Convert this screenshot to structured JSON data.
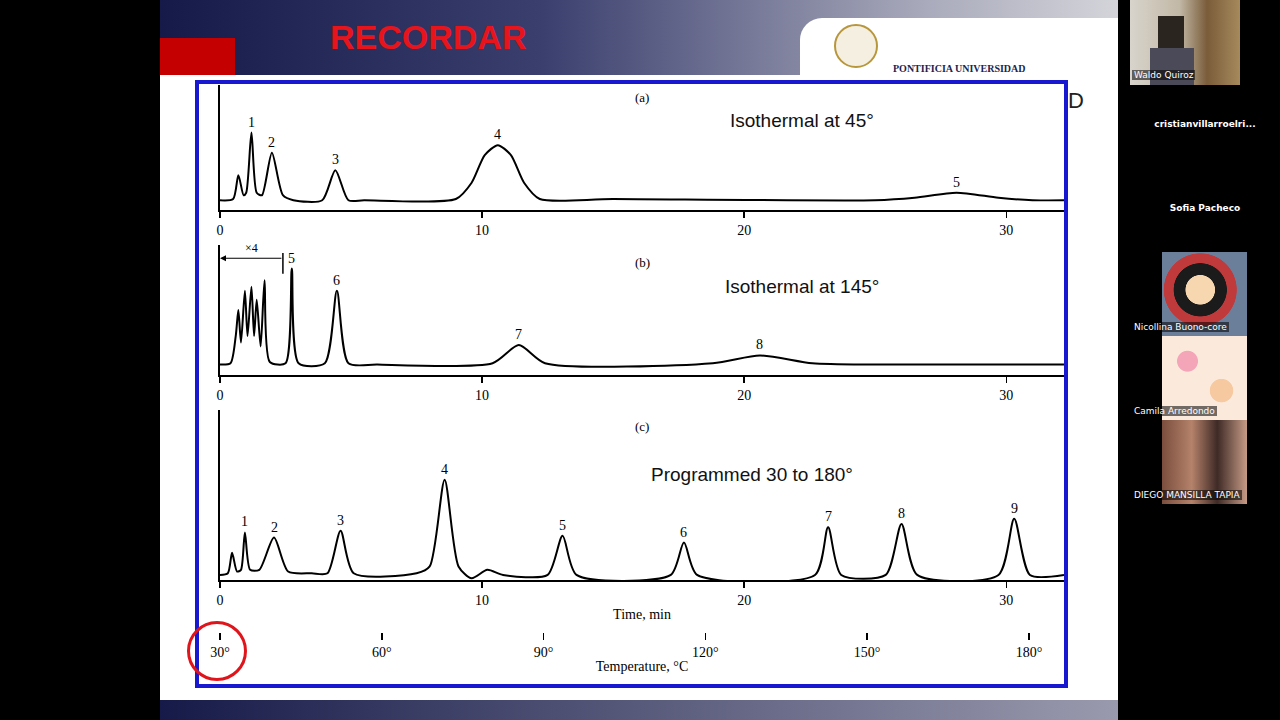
{
  "slide": {
    "heading": "RECORDAR",
    "institution": "PONTIFICIA UNIVERSIDAD",
    "title_fragment": "D"
  },
  "participants": [
    "Waldo Quiroz",
    "cristianvillarroelri...",
    "Sofia Pacheco",
    "Nicollina Buono-core",
    "Camila Arredondo",
    "DIEGO MANSILLA TAPIA"
  ],
  "chart_data": [
    {
      "type": "line",
      "label": "(a)",
      "title": "Isothermal at 45°",
      "color": "#000000",
      "line_style": "smooth",
      "grid": false,
      "tick_labels": "x",
      "x": [
        0,
        0.5,
        0.7,
        0.9,
        1.0,
        1.2,
        1.4,
        1.6,
        1.98,
        2.4,
        2.8,
        3.9,
        4.4,
        4.9,
        5.5,
        9.0,
        9.6,
        10.1,
        10.6,
        11.1,
        11.6,
        12.2,
        15,
        25,
        26.5,
        28.1,
        29.7,
        31,
        32.2
      ],
      "values": [
        8,
        9,
        28,
        12,
        14,
        62,
        14,
        12,
        46,
        12,
        8,
        8,
        32,
        8,
        8,
        9,
        22,
        44,
        52,
        44,
        22,
        9,
        9,
        8,
        10,
        14,
        10,
        8,
        8
      ],
      "xlim": [
        0,
        32.2
      ],
      "xticks": [
        0,
        10,
        20,
        30
      ],
      "ylim": [
        0,
        100
      ],
      "peak_labels": [
        {
          "text": "1",
          "x": 1.2
        },
        {
          "text": "2",
          "x": 1.98
        },
        {
          "text": "3",
          "x": 4.4
        },
        {
          "text": "4",
          "x": 10.6
        },
        {
          "text": "5",
          "x": 28.1
        }
      ]
    },
    {
      "type": "line",
      "label": "(b)",
      "title": "Isothermal at 145°",
      "color": "#000000",
      "line_style": "smooth",
      "grid": false,
      "tick_labels": "x",
      "x": [
        0,
        0.4,
        0.6,
        0.7,
        0.8,
        0.95,
        1.05,
        1.2,
        1.3,
        1.4,
        1.55,
        1.7,
        1.9,
        2.5,
        2.74,
        3.0,
        4.0,
        4.46,
        4.9,
        6,
        10.4,
        11.4,
        12.4,
        18.8,
        20.6,
        22.6,
        25,
        32.2
      ],
      "values": [
        8,
        9,
        30,
        50,
        25,
        65,
        30,
        68,
        30,
        58,
        22,
        73,
        10,
        9,
        82,
        9,
        9,
        65,
        9,
        8,
        9,
        23,
        9,
        9,
        15,
        9,
        8,
        8
      ],
      "xlim": [
        0,
        32.2
      ],
      "xticks": [
        0,
        10,
        20,
        30
      ],
      "ylim": [
        0,
        100
      ],
      "peak_labels": [
        {
          "text": "5",
          "x": 2.74
        },
        {
          "text": "6",
          "x": 4.46
        },
        {
          "text": "7",
          "x": 11.4
        },
        {
          "text": "8",
          "x": 20.6
        }
      ],
      "annotations": [
        {
          "text": "×4",
          "x": [
            0,
            2.4
          ],
          "y": 90
        }
      ]
    },
    {
      "type": "line",
      "label": "(c)",
      "title": "Programmed 30 to 180°",
      "color": "#000000",
      "line_style": "smooth",
      "grid": false,
      "tick_labels": "x",
      "x": [
        0,
        0.3,
        0.46,
        0.65,
        0.8,
        0.95,
        1.15,
        1.5,
        2.06,
        2.6,
        3.5,
        4.1,
        4.6,
        5.1,
        7.5,
        8.0,
        8.57,
        9.1,
        9.6,
        10.2,
        10.8,
        12.5,
        13.07,
        13.6,
        17.2,
        17.7,
        18.2,
        22.7,
        23.2,
        23.7,
        25.4,
        26.0,
        26.6,
        29.7,
        30.3,
        30.9,
        32.2
      ],
      "values": [
        3,
        4,
        16,
        5,
        6,
        28,
        6,
        6,
        25,
        5,
        4,
        4,
        29,
        4,
        4,
        8,
        59,
        8,
        1,
        6,
        3,
        3,
        26,
        3,
        3,
        22,
        3,
        3,
        31,
        3,
        3,
        33,
        3,
        3,
        36,
        3,
        3
      ],
      "xlim": [
        0,
        32.2
      ],
      "xticks": [
        0,
        10,
        20,
        30
      ],
      "ylim": [
        0,
        100
      ],
      "xlabel": "Time, min",
      "x2label": "Temperature, °C",
      "x2lim": [
        30,
        186.5
      ],
      "x2ticks": [
        {
          "value": 30,
          "label": "30°"
        },
        {
          "value": 60,
          "label": "60°"
        },
        {
          "value": 90,
          "label": "90°"
        },
        {
          "value": 120,
          "label": "120°"
        },
        {
          "value": 150,
          "label": "150°"
        },
        {
          "value": 180,
          "label": "180°"
        }
      ],
      "peak_labels": [
        {
          "text": "1",
          "x": 0.95
        },
        {
          "text": "2",
          "x": 2.06
        },
        {
          "text": "3",
          "x": 4.6
        },
        {
          "text": "4",
          "x": 8.57
        },
        {
          "text": "5",
          "x": 13.07
        },
        {
          "text": "6",
          "x": 17.7
        },
        {
          "text": "7",
          "x": 23.2
        },
        {
          "text": "8",
          "x": 26.0
        },
        {
          "text": "9",
          "x": 30.3
        }
      ]
    }
  ]
}
